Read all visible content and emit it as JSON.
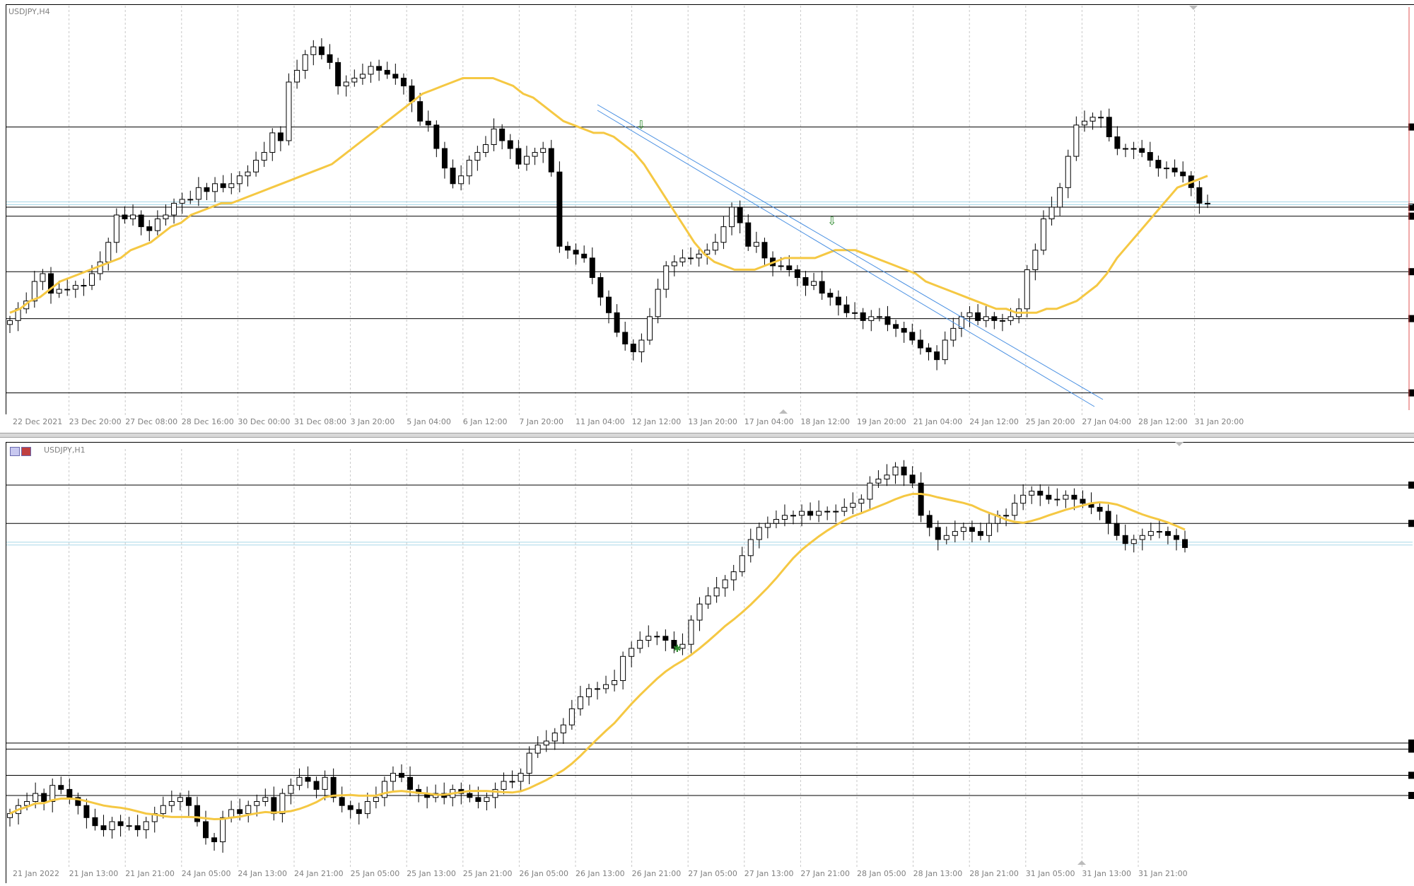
{
  "window": {
    "top_panel_symbol": "USDJPY,H4",
    "bottom_panel_symbol": "USDJPY,H1"
  },
  "colors": {
    "bull_body": "#ffffff",
    "bear_body": "#000000",
    "wick": "#000000",
    "moving_average": "#f5c843",
    "trend_channel": "#4a90e2",
    "level_line": "#000000",
    "bid_line": "#a8d8e8",
    "grid": "#c8c8c8",
    "arrow": "#2e8b2e",
    "axis_text": "#808080"
  },
  "icons": [
    "down-arrow-icon",
    "down-arrow-icon",
    "star-icon",
    "window-icons"
  ],
  "chart_data": [
    {
      "type": "candlestick",
      "title": "USDJPY,H4",
      "price_range": [
        0,
        100
      ],
      "grid": true,
      "x_tick_labels": [
        "22 Dec 2021",
        "23 Dec 20:00",
        "27 Dec 08:00",
        "28 Dec 16:00",
        "30 Dec 00:00",
        "31 Dec 08:00",
        "3 Jan 20:00",
        "5 Jan 04:00",
        "6 Jan 12:00",
        "7 Jan 20:00",
        "11 Jan 04:00",
        "12 Jan 12:00",
        "13 Jan 20:00",
        "17 Jan 04:00",
        "18 Jan 12:00",
        "19 Jan 20:00",
        "21 Jan 04:00",
        "24 Jan 12:00",
        "25 Jan 20:00",
        "27 Jan 04:00",
        "28 Jan 12:00",
        "31 Jan 20:00"
      ],
      "horizontal_levels": [
        71.5,
        51.0,
        48.7,
        34.5,
        22.5,
        3.5
      ],
      "bid_level": 52.0,
      "close": [
        22,
        25,
        27,
        32,
        34,
        29,
        30,
        30,
        31,
        31,
        34,
        37,
        42,
        49,
        48,
        49,
        46,
        45,
        48,
        49,
        52,
        53,
        53,
        56,
        55,
        57,
        56,
        57,
        59,
        60,
        63,
        65,
        70,
        68,
        83,
        86,
        90,
        92,
        90,
        88,
        82,
        83,
        84,
        85,
        87,
        86,
        85,
        84,
        82,
        78,
        73,
        72,
        66,
        61,
        57,
        59,
        63,
        65,
        67,
        71,
        68,
        66,
        62,
        64,
        65,
        66,
        60,
        41,
        40,
        39,
        38,
        33,
        28,
        24,
        19,
        16,
        14,
        17,
        23,
        30,
        36,
        37,
        38,
        38,
        39,
        40,
        42,
        46,
        51,
        47,
        41,
        42,
        38,
        36,
        36,
        35,
        33,
        31,
        32,
        29,
        28,
        26,
        24,
        24,
        22,
        23,
        23,
        21,
        20,
        19,
        17,
        15,
        14,
        12,
        17,
        20,
        23,
        24,
        22,
        23,
        22,
        22,
        23,
        25,
        35,
        40,
        48,
        51,
        56,
        64,
        72,
        73,
        74,
        74,
        69,
        66,
        66,
        66,
        65,
        63,
        61,
        61,
        60,
        59,
        56,
        52,
        52
      ],
      "ma_close": [
        24,
        25,
        27,
        28,
        30,
        32,
        33,
        34,
        35,
        36,
        37,
        38,
        40,
        41,
        42,
        44,
        46,
        47,
        49,
        50,
        51,
        52,
        52,
        53,
        54,
        55,
        56,
        57,
        58,
        59,
        60,
        61,
        62,
        64,
        66,
        68,
        70,
        72,
        74,
        76,
        78,
        80,
        81,
        82,
        83,
        84,
        84,
        84,
        84,
        83,
        82,
        80,
        79,
        77,
        75,
        73,
        72,
        71,
        70,
        70,
        69,
        67,
        65,
        62,
        58,
        54,
        50,
        46,
        42,
        39,
        37,
        36,
        35,
        35,
        35,
        36,
        37,
        38,
        38,
        38,
        38,
        39,
        40,
        40,
        40,
        39,
        38,
        37,
        36,
        35,
        34,
        32,
        31,
        30,
        29,
        28,
        27,
        26,
        25,
        25,
        24,
        24,
        24,
        25,
        25,
        26,
        27,
        29,
        31,
        34,
        38,
        41,
        44,
        47,
        50,
        53,
        56,
        57,
        58,
        59
      ]
    },
    {
      "type": "candlestick",
      "title": "USDJPY,H1",
      "price_range": [
        0,
        100
      ],
      "grid": true,
      "x_tick_labels": [
        "21 Jan 2022",
        "21 Jan 13:00",
        "21 Jan 21:00",
        "24 Jan 05:00",
        "24 Jan 13:00",
        "24 Jan 21:00",
        "25 Jan 05:00",
        "25 Jan 13:00",
        "25 Jan 21:00",
        "26 Jan 05:00",
        "26 Jan 13:00",
        "26 Jan 21:00",
        "27 Jan 05:00",
        "27 Jan 13:00",
        "27 Jan 21:00",
        "28 Jan 05:00",
        "28 Jan 13:00",
        "28 Jan 21:00",
        "31 Jan 05:00",
        "31 Jan 13:00",
        "31 Jan 21:00"
      ],
      "horizontal_levels": [
        93.5,
        84.0,
        29.5,
        28.0,
        21.5,
        16.5
      ],
      "bid_level": 79.0,
      "close": [
        12,
        14,
        15,
        17,
        15,
        19,
        18,
        16,
        14,
        11,
        9,
        8,
        10,
        9,
        9,
        8,
        10,
        12,
        14,
        15,
        16,
        14,
        10,
        6,
        5,
        11,
        13,
        12,
        14,
        15,
        16,
        12,
        17,
        19,
        21,
        20,
        18,
        21,
        16,
        14,
        13,
        12,
        15,
        16,
        20,
        22,
        21,
        18,
        17,
        16,
        17,
        16,
        18,
        17,
        16,
        15,
        16,
        18,
        20,
        20,
        22,
        27,
        29,
        30,
        32,
        34,
        38,
        41,
        43,
        43,
        44,
        45,
        51,
        53,
        55,
        56,
        56,
        55,
        53,
        54,
        60,
        64,
        66,
        68,
        70,
        72,
        76,
        80,
        83,
        84,
        85,
        86,
        86,
        87,
        86,
        87,
        87,
        87,
        88,
        89,
        90,
        94,
        95,
        96,
        98,
        96,
        94,
        86,
        83,
        80,
        81,
        82,
        83,
        82,
        81,
        84,
        86,
        86,
        89,
        91,
        92,
        91,
        90,
        90,
        91,
        90,
        89,
        88,
        87,
        84,
        81,
        79,
        80,
        81,
        82,
        82,
        81,
        80,
        78
      ]
    }
  ]
}
